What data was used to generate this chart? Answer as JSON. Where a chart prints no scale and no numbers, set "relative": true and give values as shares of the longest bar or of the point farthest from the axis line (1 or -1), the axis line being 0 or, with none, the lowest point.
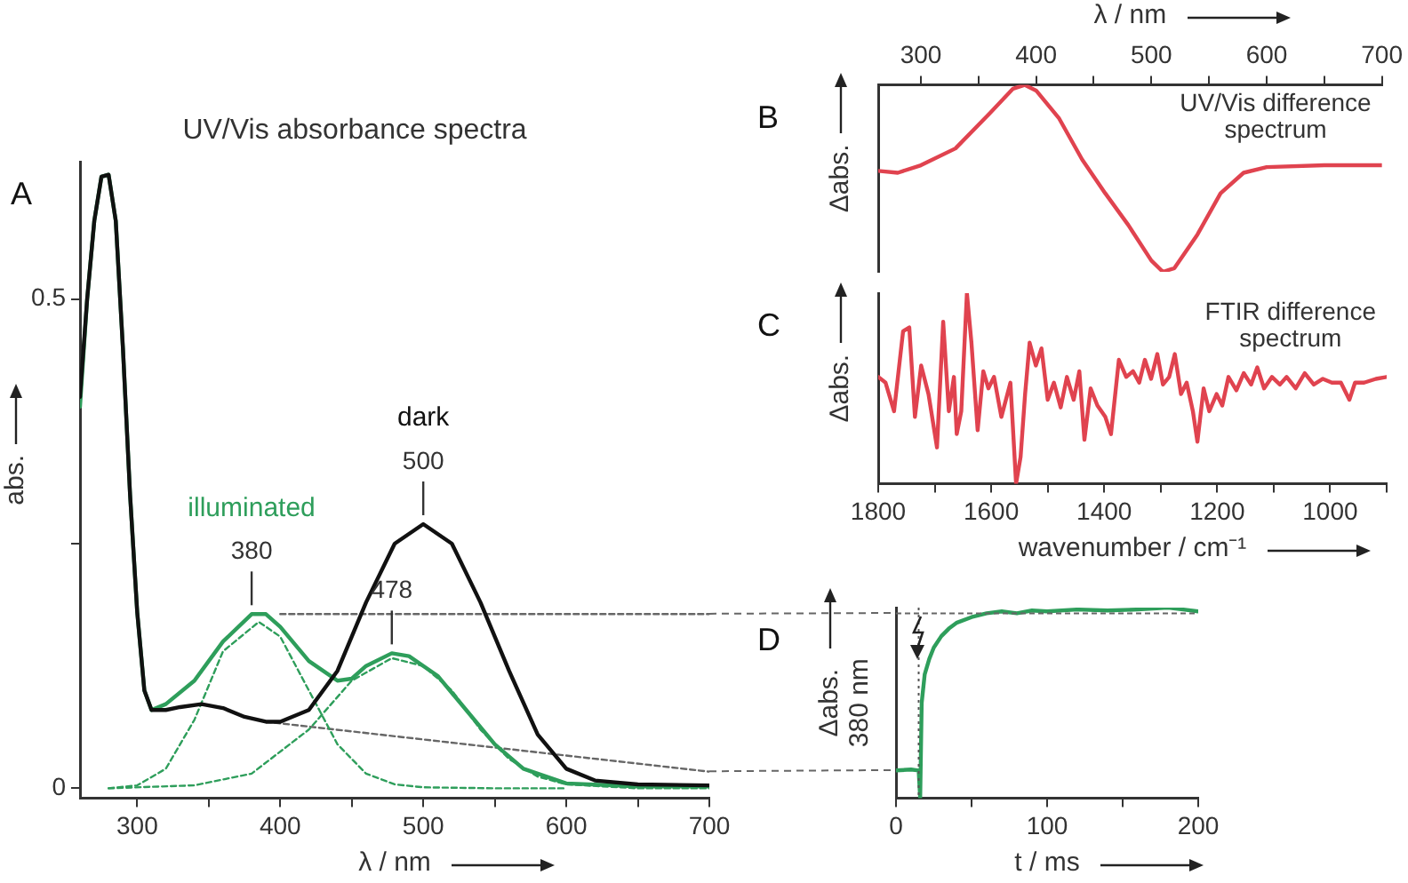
{
  "chart_data": [
    {
      "type": "line",
      "title": "UV/Vis absorbance spectra",
      "xlabel": "λ / nm",
      "ylabel": "abs.",
      "xlim": [
        260,
        700
      ],
      "xticks": [
        300,
        {
          "value": 350,
          "label": null
        },
        400,
        {
          "value": 450,
          "label": null
        },
        500,
        {
          "value": 550,
          "label": null
        },
        600,
        {
          "value": 650,
          "label": null
        },
        700
      ],
      "ylim": [
        -0.01,
        0.64
      ],
      "yticks": [
        0,
        {
          "value": 0.25,
          "label": null
        },
        0.5
      ],
      "marker": "none",
      "annotations": [
        "A",
        {
          "text": "500",
          "x": 500,
          "y": 0.27
        },
        {
          "text": "380",
          "x": 380,
          "y": 0.178
        },
        {
          "text": "478",
          "x": 478,
          "y": 0.138
        }
      ],
      "series": [
        {
          "name": "dark",
          "color": "#111111",
          "x": [
            260,
            265,
            270,
            275,
            280,
            285,
            290,
            295,
            300,
            305,
            310,
            320,
            330,
            345,
            360,
            375,
            390,
            400,
            420,
            440,
            460,
            480,
            500,
            520,
            540,
            560,
            580,
            600,
            620,
            650,
            700
          ],
          "values": [
            0.4,
            0.5,
            0.58,
            0.625,
            0.627,
            0.58,
            0.45,
            0.3,
            0.18,
            0.1,
            0.08,
            0.08,
            0.083,
            0.086,
            0.082,
            0.073,
            0.068,
            0.068,
            0.08,
            0.12,
            0.19,
            0.25,
            0.27,
            0.25,
            0.19,
            0.12,
            0.055,
            0.02,
            0.008,
            0.004,
            0.003
          ]
        },
        {
          "name": "illuminated",
          "color": "#2e9e5b",
          "x": [
            260,
            265,
            270,
            275,
            280,
            285,
            290,
            295,
            300,
            305,
            310,
            320,
            340,
            360,
            380,
            390,
            400,
            420,
            440,
            450,
            460,
            478,
            490,
            510,
            530,
            550,
            570,
            600,
            650,
            700
          ],
          "values": [
            0.39,
            0.5,
            0.58,
            0.625,
            0.627,
            0.58,
            0.45,
            0.3,
            0.18,
            0.1,
            0.08,
            0.086,
            0.11,
            0.15,
            0.178,
            0.178,
            0.165,
            0.13,
            0.11,
            0.112,
            0.125,
            0.138,
            0.135,
            0.115,
            0.08,
            0.045,
            0.02,
            0.005,
            0.002,
            0.002
          ]
        },
        {
          "color": "#2e9e5b",
          "line_style": "dashed",
          "x": [
            280,
            300,
            320,
            340,
            360,
            385,
            400,
            420,
            440,
            460,
            480,
            500,
            550,
            600
          ],
          "values": [
            0,
            0.003,
            0.02,
            0.07,
            0.14,
            0.17,
            0.155,
            0.1,
            0.045,
            0.015,
            0.004,
            0.001,
            0,
            0
          ]
        },
        {
          "color": "#2e9e5b",
          "line_style": "dashed",
          "x": [
            280,
            340,
            380,
            420,
            450,
            478,
            500,
            520,
            540,
            560,
            580,
            600,
            650,
            700
          ],
          "values": [
            0,
            0.003,
            0.015,
            0.06,
            0.11,
            0.133,
            0.125,
            0.1,
            0.06,
            0.03,
            0.012,
            0.004,
            0,
            0
          ]
        },
        {
          "color": "#666666",
          "line_style": "dashed",
          "x": [
            400,
            700
          ],
          "values": [
            0.178,
            0.178
          ]
        },
        {
          "color": "#666666",
          "line_style": "dashed",
          "x": [
            390,
            700
          ],
          "values": [
            0.068,
            0.017
          ]
        }
      ]
    },
    {
      "type": "line",
      "relative": true,
      "xlabel": "λ / nm",
      "xlim": [
        263,
        700
      ],
      "xticks": [
        300,
        {
          "value": 350,
          "label": null
        },
        400,
        {
          "value": 450,
          "label": null
        },
        500,
        {
          "value": 550,
          "label": null
        },
        600,
        {
          "value": 650,
          "label": null
        },
        700
      ],
      "ylabel": "Δabs.",
      "marker": "none",
      "annotations": [
        "B",
        "UV/Vis difference\nspectrum"
      ],
      "series": [
        {
          "color": "#e0434f",
          "x": [
            263,
            280,
            300,
            330,
            360,
            380,
            390,
            400,
            420,
            440,
            460,
            480,
            500,
            510,
            520,
            540,
            560,
            580,
            600,
            650,
            700
          ],
          "values": [
            0.54,
            0.53,
            0.57,
            0.66,
            0.85,
            0.98,
            1.0,
            0.97,
            0.82,
            0.6,
            0.42,
            0.25,
            0.06,
            0,
            0.02,
            0.2,
            0.42,
            0.53,
            0.56,
            0.57,
            0.57
          ]
        }
      ]
    },
    {
      "type": "line",
      "relative": true,
      "xlabel": "wavenumber / cm⁻¹",
      "xlim": [
        1800,
        900
      ],
      "xticks": [
        1800,
        {
          "value": 1700,
          "label": null
        },
        1600,
        {
          "value": 1500,
          "label": null
        },
        1400,
        {
          "value": 1300,
          "label": null
        },
        1200,
        {
          "value": 1100,
          "label": null
        },
        1000,
        {
          "value": 900,
          "label": null
        }
      ],
      "ylabel": "Δabs.",
      "marker": "none",
      "annotations": [
        "C",
        "FTIR difference\nspectrum"
      ],
      "series": [
        {
          "color": "#e0434f",
          "x": [
            1800,
            1787,
            1772,
            1756,
            1745,
            1735,
            1724,
            1711,
            1696,
            1685,
            1675,
            1666,
            1661,
            1653,
            1643,
            1635,
            1624,
            1614,
            1605,
            1595,
            1582,
            1566,
            1556,
            1548,
            1540,
            1532,
            1521,
            1511,
            1500,
            1489,
            1477,
            1466,
            1454,
            1444,
            1435,
            1424,
            1412,
            1398,
            1388,
            1374,
            1361,
            1349,
            1338,
            1328,
            1317,
            1306,
            1296,
            1285,
            1275,
            1264,
            1254,
            1243,
            1235,
            1224,
            1214,
            1201,
            1191,
            1180,
            1166,
            1153,
            1140,
            1129,
            1117,
            1103,
            1089,
            1077,
            1061,
            1045,
            1029,
            1013,
            997,
            981,
            966,
            956,
            940,
            919,
            900
          ],
          "values": [
            0.56,
            0.53,
            0.38,
            0.8,
            0.82,
            0.35,
            0.62,
            0.47,
            0.19,
            0.85,
            0.38,
            0.56,
            0.26,
            0.38,
            1.0,
            0.74,
            0.28,
            0.59,
            0.5,
            0.56,
            0.35,
            0.53,
            0,
            0.14,
            0.47,
            0.74,
            0.62,
            0.71,
            0.44,
            0.53,
            0.4,
            0.56,
            0.44,
            0.59,
            0.23,
            0.5,
            0.41,
            0.35,
            0.26,
            0.65,
            0.56,
            0.59,
            0.53,
            0.65,
            0.55,
            0.68,
            0.52,
            0.56,
            0.68,
            0.47,
            0.53,
            0.38,
            0.22,
            0.5,
            0.38,
            0.47,
            0.41,
            0.56,
            0.49,
            0.58,
            0.52,
            0.61,
            0.5,
            0.56,
            0.52,
            0.56,
            0.5,
            0.58,
            0.52,
            0.55,
            0.53,
            0.53,
            0.44,
            0.53,
            0.53,
            0.55,
            0.56
          ]
        }
      ]
    },
    {
      "type": "line",
      "relative": true,
      "xlabel": "t / ms",
      "xlim": [
        0,
        200
      ],
      "xticks": [
        0,
        {
          "value": 50,
          "label": null
        },
        100,
        {
          "value": 150,
          "label": null
        },
        200
      ],
      "ylabel": "Δabs.\n380 nm",
      "marker": "none",
      "annotations": [
        "D"
      ],
      "ref_lines": [
        {
          "axis": "x",
          "value": 15,
          "line_style": "dotted"
        },
        {
          "axis": "y",
          "value": 0.97,
          "line_style": "dashed",
          "color": "#666666"
        }
      ],
      "series": [
        {
          "color": "#2e9e5b",
          "x": [
            0,
            10,
            15,
            16,
            17,
            19,
            22,
            25,
            30,
            35,
            40,
            50,
            60,
            70,
            80,
            90,
            100,
            120,
            140,
            160,
            180,
            190,
            200
          ],
          "values": [
            0.145,
            0.15,
            0.145,
            0,
            0.5,
            0.65,
            0.73,
            0.79,
            0.85,
            0.89,
            0.92,
            0.95,
            0.97,
            0.98,
            0.97,
            0.985,
            0.98,
            0.99,
            0.985,
            0.99,
            1.0,
            0.99,
            0.98
          ]
        }
      ]
    }
  ]
}
